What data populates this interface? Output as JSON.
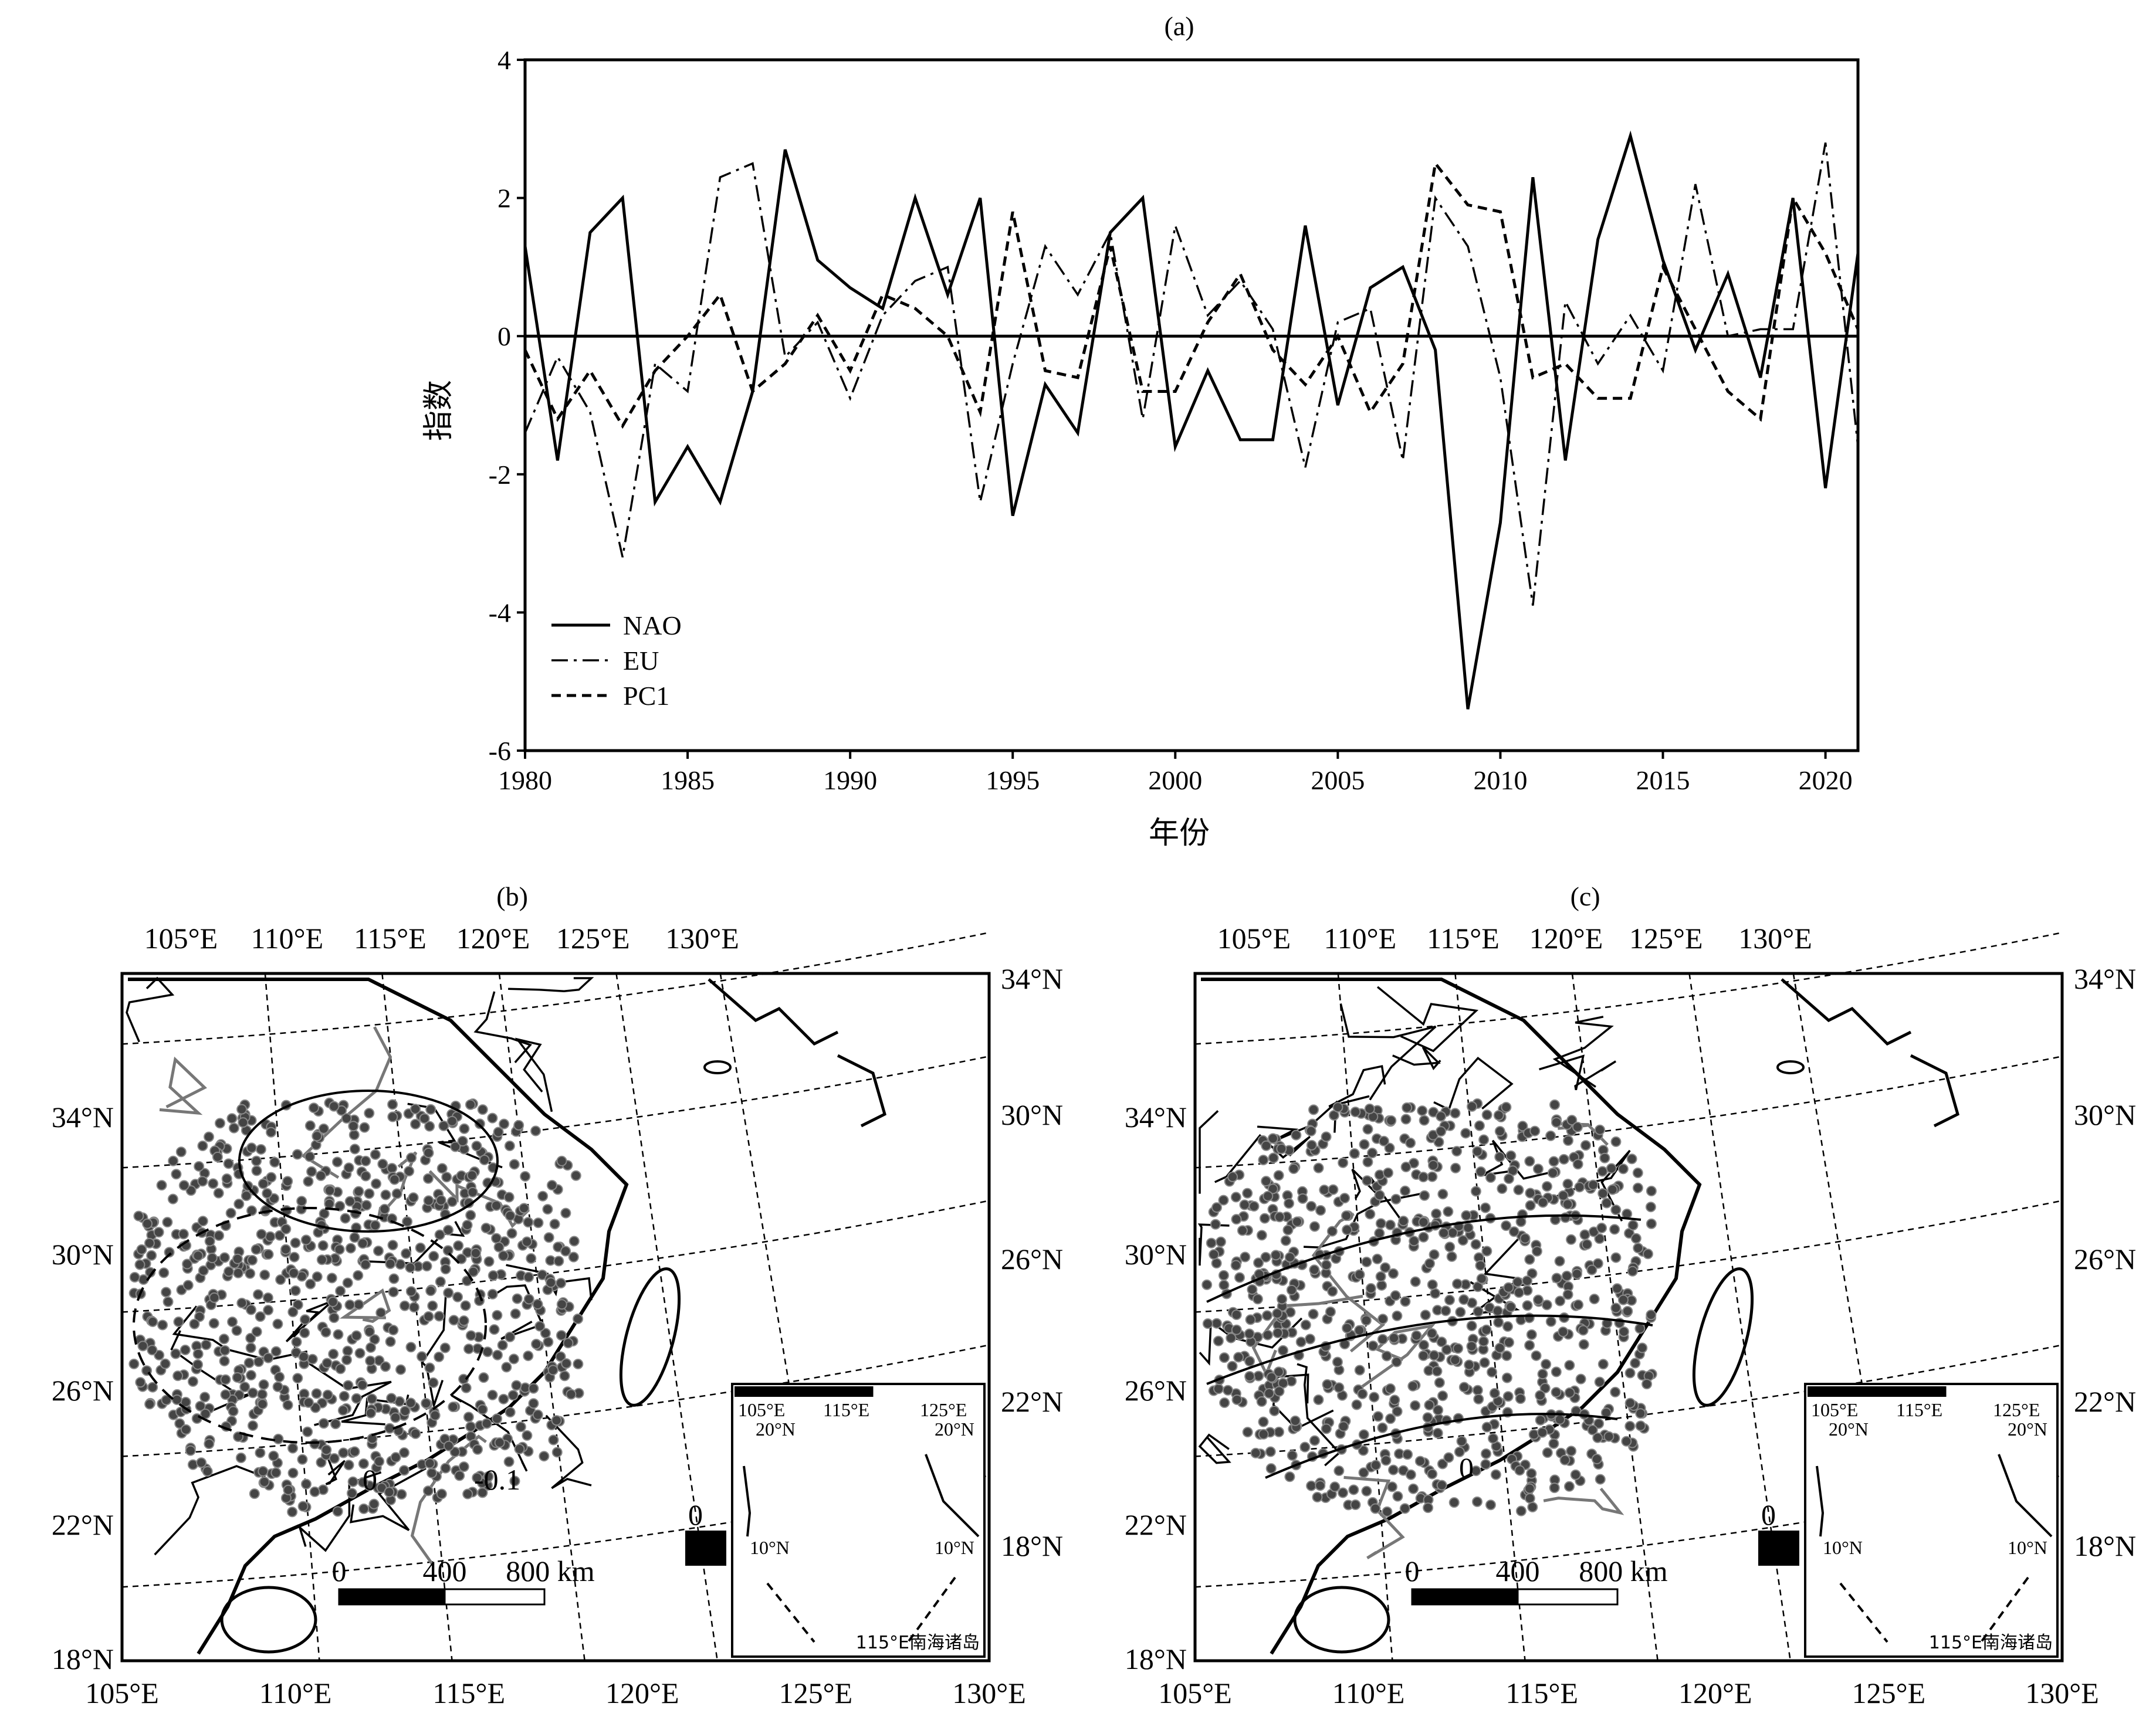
{
  "chart_data": [
    {
      "type": "line",
      "panel_label": "(a)",
      "xlabel": "年份",
      "ylabel": "指数",
      "xlim": [
        1980,
        2021
      ],
      "ylim": [
        -6,
        4
      ],
      "xticks": [
        1980,
        1985,
        1990,
        1995,
        2000,
        2005,
        2010,
        2015,
        2020
      ],
      "yticks": [
        -6,
        -4,
        -2,
        0,
        2,
        4
      ],
      "legend_position": "lower-left",
      "zero_line": true,
      "x": [
        1980,
        1981,
        1982,
        1983,
        1984,
        1985,
        1986,
        1987,
        1988,
        1989,
        1990,
        1991,
        1992,
        1993,
        1994,
        1995,
        1996,
        1997,
        1998,
        1999,
        2000,
        2001,
        2002,
        2003,
        2004,
        2005,
        2006,
        2007,
        2008,
        2009,
        2010,
        2011,
        2012,
        2013,
        2014,
        2015,
        2016,
        2017,
        2018,
        2019,
        2020,
        2021
      ],
      "series": [
        {
          "name": "NAO",
          "style": "solid",
          "values": [
            1.3,
            -1.8,
            1.5,
            2.0,
            -2.4,
            -1.6,
            -2.4,
            -0.8,
            2.7,
            1.1,
            0.7,
            0.4,
            2.0,
            0.6,
            2.0,
            -2.6,
            -0.7,
            -1.4,
            1.5,
            2.0,
            -1.6,
            -0.5,
            -1.5,
            -1.5,
            1.6,
            -1.0,
            0.7,
            1.0,
            -0.2,
            -5.4,
            -2.7,
            2.3,
            -1.8,
            1.4,
            2.9,
            1.1,
            -0.2,
            0.9,
            -0.6,
            2.0,
            -2.2,
            1.2
          ]
        },
        {
          "name": "EU",
          "style": "dash-dot",
          "values": [
            -1.4,
            -0.3,
            -1.1,
            -3.2,
            -0.4,
            -0.8,
            2.3,
            2.5,
            -0.3,
            0.2,
            -0.9,
            0.3,
            0.8,
            1.0,
            -2.4,
            -0.4,
            1.3,
            0.6,
            1.5,
            -1.2,
            1.6,
            0.3,
            0.8,
            0.1,
            -1.9,
            0.2,
            0.4,
            -1.8,
            2.0,
            1.3,
            -0.6,
            -3.9,
            0.5,
            -0.4,
            0.3,
            -0.5,
            2.2,
            0.0,
            0.1,
            0.1,
            2.8,
            -1.6
          ]
        },
        {
          "name": "PC1",
          "style": "dashed",
          "values": [
            -0.2,
            -1.2,
            -0.5,
            -1.3,
            -0.5,
            0.0,
            0.6,
            -0.8,
            -0.4,
            0.3,
            -0.5,
            0.6,
            0.4,
            0.0,
            -1.1,
            1.8,
            -0.5,
            -0.6,
            1.3,
            -0.8,
            -0.8,
            0.2,
            0.9,
            -0.2,
            -0.7,
            0.0,
            -1.1,
            -0.4,
            2.5,
            1.9,
            1.8,
            -0.6,
            -0.4,
            -0.9,
            -0.9,
            1.0,
            0.1,
            -0.8,
            -1.2,
            2.0,
            1.2,
            0.1
          ]
        }
      ]
    },
    {
      "type": "map",
      "panel_label": "(b)",
      "lon_ticks": [
        "105°E",
        "110°E",
        "115°E",
        "120°E",
        "125°E",
        "130°E"
      ],
      "lat_ticks_left": [
        "18°N",
        "22°N",
        "26°N",
        "30°N",
        "34°N"
      ],
      "lat_ticks_right": [
        "18°N",
        "22°N",
        "26°N",
        "30°N",
        "34°N"
      ],
      "lon_ticks_bottom": [
        "105°E",
        "110°E",
        "115°E",
        "120°E",
        "125°E",
        "130°E"
      ],
      "contour_labels": [
        "0",
        "-0.1"
      ],
      "scalebar": {
        "labels": [
          "0",
          "400",
          "800 km"
        ]
      },
      "inset": {
        "caption": "115°E南海诸岛",
        "lon_labels": [
          "105°E",
          "115°E",
          "125°E"
        ],
        "lat_labels": [
          "20°N",
          "20°N",
          "10°N",
          "10°N"
        ]
      }
    },
    {
      "type": "map",
      "panel_label": "(c)",
      "lon_ticks": [
        "105°E",
        "110°E",
        "115°E",
        "120°E",
        "125°E",
        "130°E"
      ],
      "lat_ticks_left": [
        "18°N",
        "22°N",
        "26°N",
        "30°N",
        "34°N"
      ],
      "lat_ticks_right": [
        "18°N",
        "22°N",
        "26°N",
        "30°N",
        "34°N"
      ],
      "lon_ticks_bottom": [
        "105°E",
        "110°E",
        "115°E",
        "120°E",
        "125°E",
        "130°E"
      ],
      "contour_labels": [
        "0"
      ],
      "scalebar": {
        "labels": [
          "0",
          "400",
          "800 km"
        ]
      },
      "inset": {
        "caption": "115°E南海诸岛",
        "lon_labels": [
          "105°E",
          "115°E",
          "125°E"
        ],
        "lat_labels": [
          "20°N",
          "20°N",
          "10°N",
          "10°N"
        ]
      }
    }
  ]
}
